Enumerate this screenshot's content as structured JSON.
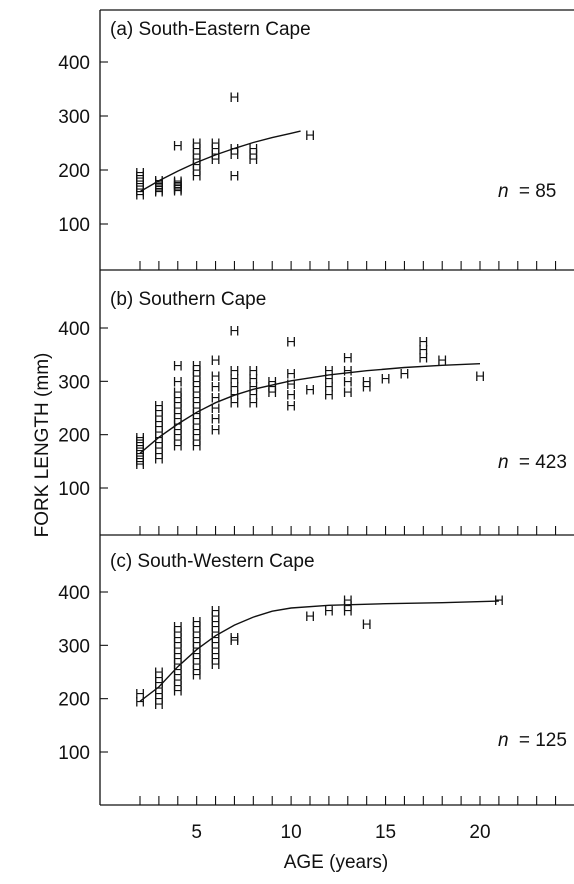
{
  "chart_data": [
    {
      "type": "scatter",
      "title": "(a) South-Eastern Cape",
      "annotation_prefix": "n",
      "annotation_value": "= 85",
      "marker_glyph": "H",
      "xlim": [
        1,
        25
      ],
      "ylim": [
        0,
        480
      ],
      "y_ticks": [
        "100",
        "200",
        "300",
        "400"
      ],
      "points": [
        [
          2,
          155
        ],
        [
          2,
          160
        ],
        [
          2,
          165
        ],
        [
          2,
          170
        ],
        [
          2,
          175
        ],
        [
          2,
          180
        ],
        [
          2,
          185
        ],
        [
          2,
          190
        ],
        [
          2,
          195
        ],
        [
          3,
          160
        ],
        [
          3,
          163
        ],
        [
          3,
          166
        ],
        [
          3,
          169
        ],
        [
          3,
          172
        ],
        [
          3,
          175
        ],
        [
          3,
          178
        ],
        [
          3,
          181
        ],
        [
          4,
          162
        ],
        [
          4,
          165
        ],
        [
          4,
          168
        ],
        [
          4,
          171
        ],
        [
          4,
          174
        ],
        [
          4,
          177
        ],
        [
          4,
          180
        ],
        [
          4,
          245
        ],
        [
          5,
          190
        ],
        [
          5,
          200
        ],
        [
          5,
          210
        ],
        [
          5,
          220
        ],
        [
          5,
          230
        ],
        [
          5,
          240
        ],
        [
          5,
          250
        ],
        [
          6,
          220
        ],
        [
          6,
          230
        ],
        [
          6,
          240
        ],
        [
          6,
          250
        ],
        [
          7,
          190
        ],
        [
          7,
          230
        ],
        [
          7,
          240
        ],
        [
          7,
          335
        ],
        [
          8,
          220
        ],
        [
          8,
          230
        ],
        [
          8,
          240
        ],
        [
          11,
          265
        ]
      ],
      "fit_curve": [
        [
          2,
          160
        ],
        [
          3,
          180
        ],
        [
          4,
          198
        ],
        [
          5,
          214
        ],
        [
          6,
          228
        ],
        [
          7,
          240
        ],
        [
          8,
          251
        ],
        [
          9,
          260
        ],
        [
          10,
          268
        ],
        [
          10.5,
          272
        ]
      ]
    },
    {
      "type": "scatter",
      "title": "(b) Southern Cape",
      "annotation_prefix": "n",
      "annotation_value": "= 423",
      "marker_glyph": "H",
      "xlim": [
        1,
        25
      ],
      "ylim": [
        0,
        480
      ],
      "y_ticks": [
        "100",
        "200",
        "300",
        "400"
      ],
      "points": [
        [
          2,
          145
        ],
        [
          2,
          150
        ],
        [
          2,
          155
        ],
        [
          2,
          160
        ],
        [
          2,
          165
        ],
        [
          2,
          170
        ],
        [
          2,
          175
        ],
        [
          2,
          180
        ],
        [
          2,
          185
        ],
        [
          2,
          190
        ],
        [
          2,
          195
        ],
        [
          3,
          155
        ],
        [
          3,
          165
        ],
        [
          3,
          175
        ],
        [
          3,
          185
        ],
        [
          3,
          195
        ],
        [
          3,
          205
        ],
        [
          3,
          215
        ],
        [
          3,
          225
        ],
        [
          3,
          235
        ],
        [
          3,
          245
        ],
        [
          3,
          255
        ],
        [
          4,
          180
        ],
        [
          4,
          190
        ],
        [
          4,
          200
        ],
        [
          4,
          210
        ],
        [
          4,
          220
        ],
        [
          4,
          230
        ],
        [
          4,
          240
        ],
        [
          4,
          250
        ],
        [
          4,
          260
        ],
        [
          4,
          270
        ],
        [
          4,
          280
        ],
        [
          4,
          300
        ],
        [
          4,
          330
        ],
        [
          5,
          180
        ],
        [
          5,
          190
        ],
        [
          5,
          200
        ],
        [
          5,
          210
        ],
        [
          5,
          220
        ],
        [
          5,
          230
        ],
        [
          5,
          240
        ],
        [
          5,
          250
        ],
        [
          5,
          260
        ],
        [
          5,
          270
        ],
        [
          5,
          280
        ],
        [
          5,
          290
        ],
        [
          5,
          300
        ],
        [
          5,
          310
        ],
        [
          5,
          320
        ],
        [
          5,
          330
        ],
        [
          6,
          210
        ],
        [
          6,
          230
        ],
        [
          6,
          250
        ],
        [
          6,
          270
        ],
        [
          6,
          290
        ],
        [
          6,
          310
        ],
        [
          6,
          340
        ],
        [
          7,
          260
        ],
        [
          7,
          275
        ],
        [
          7,
          290
        ],
        [
          7,
          305
        ],
        [
          7,
          320
        ],
        [
          7,
          395
        ],
        [
          8,
          260
        ],
        [
          8,
          275
        ],
        [
          8,
          290
        ],
        [
          8,
          305
        ],
        [
          8,
          320
        ],
        [
          9,
          280
        ],
        [
          9,
          290
        ],
        [
          9,
          300
        ],
        [
          10,
          255
        ],
        [
          10,
          275
        ],
        [
          10,
          295
        ],
        [
          10,
          315
        ],
        [
          10,
          375
        ],
        [
          11,
          285
        ],
        [
          12,
          275
        ],
        [
          12,
          290
        ],
        [
          12,
          305
        ],
        [
          12,
          320
        ],
        [
          13,
          280
        ],
        [
          13,
          300
        ],
        [
          13,
          320
        ],
        [
          13,
          345
        ],
        [
          14,
          290
        ],
        [
          14,
          300
        ],
        [
          15,
          305
        ],
        [
          16,
          315
        ],
        [
          17,
          345
        ],
        [
          17,
          360
        ],
        [
          17,
          375
        ],
        [
          18,
          340
        ],
        [
          20,
          310
        ]
      ],
      "fit_curve": [
        [
          2,
          165
        ],
        [
          3,
          195
        ],
        [
          4,
          220
        ],
        [
          5,
          242
        ],
        [
          6,
          260
        ],
        [
          7,
          274
        ],
        [
          8,
          285
        ],
        [
          10,
          301
        ],
        [
          12,
          312
        ],
        [
          14,
          320
        ],
        [
          16,
          326
        ],
        [
          18,
          330
        ],
        [
          20,
          333
        ]
      ]
    },
    {
      "type": "scatter",
      "title": "(c) South-Western Cape",
      "annotation_prefix": "n",
      "annotation_value": "= 125",
      "marker_glyph": "H",
      "xlim": [
        1,
        25
      ],
      "ylim": [
        0,
        480
      ],
      "y_ticks": [
        "100",
        "200",
        "300",
        "400"
      ],
      "x_ticks": [
        "5",
        "10",
        "15",
        "20"
      ],
      "xlabel": "AGE (years)",
      "points": [
        [
          2,
          195
        ],
        [
          2,
          210
        ],
        [
          3,
          190
        ],
        [
          3,
          200
        ],
        [
          3,
          210
        ],
        [
          3,
          220
        ],
        [
          3,
          230
        ],
        [
          3,
          240
        ],
        [
          3,
          250
        ],
        [
          4,
          215
        ],
        [
          4,
          225
        ],
        [
          4,
          235
        ],
        [
          4,
          245
        ],
        [
          4,
          255
        ],
        [
          4,
          265
        ],
        [
          4,
          275
        ],
        [
          4,
          285
        ],
        [
          4,
          295
        ],
        [
          4,
          305
        ],
        [
          4,
          315
        ],
        [
          4,
          325
        ],
        [
          4,
          335
        ],
        [
          5,
          245
        ],
        [
          5,
          255
        ],
        [
          5,
          265
        ],
        [
          5,
          275
        ],
        [
          5,
          285
        ],
        [
          5,
          295
        ],
        [
          5,
          305
        ],
        [
          5,
          315
        ],
        [
          5,
          325
        ],
        [
          5,
          335
        ],
        [
          5,
          345
        ],
        [
          6,
          265
        ],
        [
          6,
          275
        ],
        [
          6,
          285
        ],
        [
          6,
          295
        ],
        [
          6,
          305
        ],
        [
          6,
          315
        ],
        [
          6,
          325
        ],
        [
          6,
          335
        ],
        [
          6,
          345
        ],
        [
          6,
          355
        ],
        [
          6,
          365
        ],
        [
          7,
          310
        ],
        [
          7,
          315
        ],
        [
          11,
          355
        ],
        [
          12,
          365
        ],
        [
          13,
          365
        ],
        [
          13,
          375
        ],
        [
          13,
          385
        ],
        [
          14,
          340
        ],
        [
          21,
          385
        ]
      ],
      "fit_curve": [
        [
          2,
          195
        ],
        [
          3,
          222
        ],
        [
          4,
          260
        ],
        [
          5,
          292
        ],
        [
          6,
          318
        ],
        [
          7,
          338
        ],
        [
          8,
          353
        ],
        [
          9,
          364
        ],
        [
          10,
          370
        ],
        [
          12,
          375
        ],
        [
          15,
          378
        ],
        [
          18,
          380
        ],
        [
          21,
          383
        ]
      ]
    }
  ],
  "ylabel": "FORK LENGTH  (mm)"
}
